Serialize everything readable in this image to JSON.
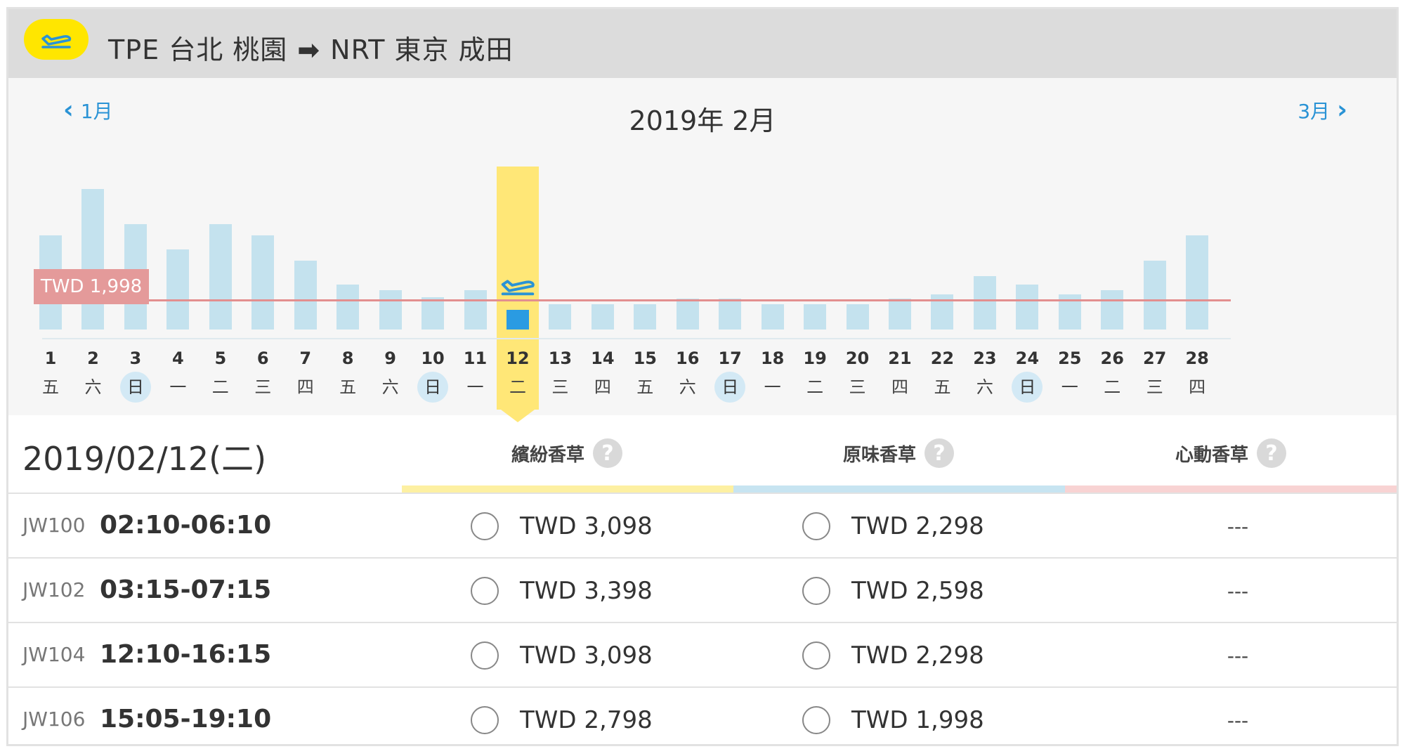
{
  "route": {
    "text": "TPE 台北 桃園 ➡ NRT 東京 成田",
    "origin": "TPE 台北 桃園",
    "destination": "NRT 東京 成田",
    "icon": "plane-takeoff-icon",
    "accent_color": "#ffe600"
  },
  "calendar": {
    "prev_label": "1月",
    "next_label": "3月",
    "title": "2019年 2月",
    "selected_day": 12,
    "reference_price_label": "TWD 1,998",
    "reference_price": 1998,
    "days": [
      {
        "day": "1",
        "weekday": "五"
      },
      {
        "day": "2",
        "weekday": "六"
      },
      {
        "day": "3",
        "weekday": "日"
      },
      {
        "day": "4",
        "weekday": "一"
      },
      {
        "day": "5",
        "weekday": "二"
      },
      {
        "day": "6",
        "weekday": "三"
      },
      {
        "day": "7",
        "weekday": "四"
      },
      {
        "day": "8",
        "weekday": "五"
      },
      {
        "day": "9",
        "weekday": "六"
      },
      {
        "day": "10",
        "weekday": "日"
      },
      {
        "day": "11",
        "weekday": "一"
      },
      {
        "day": "12",
        "weekday": "二"
      },
      {
        "day": "13",
        "weekday": "三"
      },
      {
        "day": "14",
        "weekday": "四"
      },
      {
        "day": "15",
        "weekday": "五"
      },
      {
        "day": "16",
        "weekday": "六"
      },
      {
        "day": "17",
        "weekday": "日"
      },
      {
        "day": "18",
        "weekday": "一"
      },
      {
        "day": "19",
        "weekday": "二"
      },
      {
        "day": "20",
        "weekday": "三"
      },
      {
        "day": "21",
        "weekday": "四"
      },
      {
        "day": "22",
        "weekday": "五"
      },
      {
        "day": "23",
        "weekday": "六"
      },
      {
        "day": "24",
        "weekday": "日"
      },
      {
        "day": "25",
        "weekday": "一"
      },
      {
        "day": "26",
        "weekday": "二"
      },
      {
        "day": "27",
        "weekday": "三"
      },
      {
        "day": "28",
        "weekday": "四"
      }
    ],
    "bar_levels": [
      0.67,
      1.0,
      0.75,
      0.57,
      0.75,
      0.67,
      0.49,
      0.32,
      0.28,
      0.23,
      0.28,
      0.14,
      0.18,
      0.18,
      0.18,
      0.22,
      0.22,
      0.18,
      0.18,
      0.18,
      0.22,
      0.25,
      0.38,
      0.32,
      0.25,
      0.28,
      0.49,
      0.67
    ],
    "colors": {
      "bar": "#c4e2ee",
      "selected_bar": "#2a9be2",
      "selected_column": "#ffe777",
      "reference_line": "#e38f8f",
      "sunday_highlight": "#d3e9f5"
    }
  },
  "fares": {
    "date_heading": "2019/02/12(二)",
    "columns": [
      {
        "label": "繽紛香草",
        "help": "?",
        "color": "#fdf0a2"
      },
      {
        "label": "原味香草",
        "help": "?",
        "color": "#c7e4f1"
      },
      {
        "label": "心動香草",
        "help": "?",
        "color": "#f8d3d3"
      }
    ],
    "rows": [
      {
        "flight": "JW100",
        "time": "02:10-06:10",
        "fare1": "TWD 3,098",
        "fare2": "TWD 2,298",
        "fare3": "---"
      },
      {
        "flight": "JW102",
        "time": "03:15-07:15",
        "fare1": "TWD 3,398",
        "fare2": "TWD 2,598",
        "fare3": "---"
      },
      {
        "flight": "JW104",
        "time": "12:10-16:15",
        "fare1": "TWD 3,098",
        "fare2": "TWD 2,298",
        "fare3": "---"
      },
      {
        "flight": "JW106",
        "time": "15:05-19:10",
        "fare1": "TWD 2,798",
        "fare2": "TWD 1,998",
        "fare3": "---"
      }
    ]
  }
}
